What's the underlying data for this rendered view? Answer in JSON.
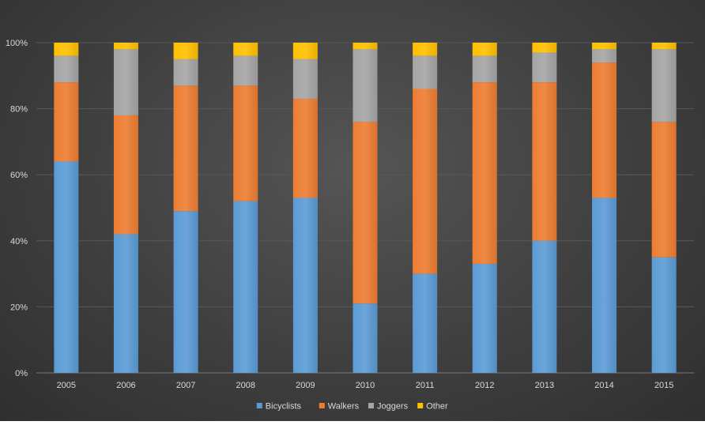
{
  "chart_data": {
    "type": "bar",
    "stacked": true,
    "categories": [
      "2005",
      "2006",
      "2007",
      "2008",
      "2009",
      "2010",
      "2011",
      "2012",
      "2013",
      "2014",
      "2015"
    ],
    "series": [
      {
        "name": "Bicyclists",
        "color": "#5b9bd5",
        "values": [
          64,
          42,
          49,
          52,
          53,
          21,
          30,
          33,
          40,
          53,
          35
        ]
      },
      {
        "name": "Walkers",
        "color": "#ed7d31",
        "values": [
          24,
          36,
          38,
          35,
          30,
          55,
          56,
          55,
          48,
          41,
          41
        ]
      },
      {
        "name": "Joggers",
        "color": "#a5a5a5",
        "values": [
          8,
          20,
          8,
          9,
          12,
          22,
          10,
          8,
          9,
          4,
          22
        ]
      },
      {
        "name": "Other",
        "color": "#ffc000",
        "values": [
          4,
          2,
          5,
          4,
          5,
          2,
          4,
          4,
          3,
          2,
          2
        ]
      }
    ],
    "ylim": [
      0,
      100
    ],
    "y_ticks": [
      "0%",
      "20%",
      "40%",
      "60%",
      "80%",
      "100%"
    ],
    "grid": true,
    "legend_position": "bottom"
  }
}
